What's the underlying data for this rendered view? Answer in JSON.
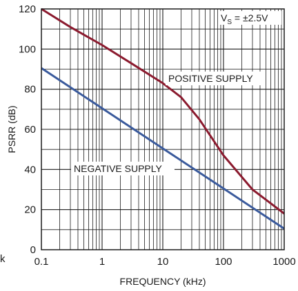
{
  "chart_data": {
    "type": "line",
    "xlabel": "FREQUENCY (kHz)",
    "ylabel": "PSRR (dB)",
    "xscale": "log",
    "xlim": [
      0.1,
      1000
    ],
    "ylim": [
      0,
      120
    ],
    "x_ticks": [
      "0.1",
      "1",
      "10",
      "100",
      "1000"
    ],
    "y_ticks": [
      "0",
      "20",
      "40",
      "60",
      "80",
      "100",
      "120"
    ],
    "grid": true,
    "condition": {
      "main": "V",
      "sub": "S",
      "rest": " = ±2.5V"
    },
    "stray_label": "k",
    "series": [
      {
        "name": "POSITIVE SUPPLY",
        "color": "#8b1a2e",
        "x": [
          0.1,
          0.3,
          1,
          3,
          10,
          20,
          40,
          100,
          300,
          1000
        ],
        "y": [
          120,
          111,
          102,
          93,
          83,
          76,
          65,
          47,
          30,
          18
        ]
      },
      {
        "name": "NEGATIVE SUPPLY",
        "color": "#3a5a9c",
        "x": [
          0.1,
          1,
          10,
          100,
          1000
        ],
        "y": [
          90.5,
          70.5,
          50.5,
          30.5,
          10.5
        ]
      }
    ]
  }
}
